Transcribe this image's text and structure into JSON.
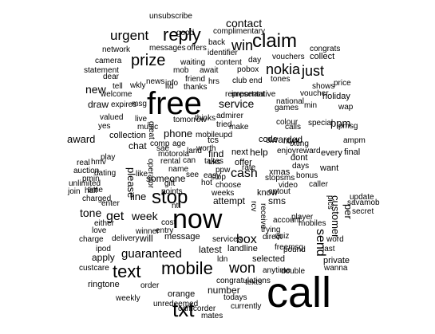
{
  "words": [
    "call",
    "free",
    "now",
    "txt",
    "text",
    "mobile",
    "stop",
    "claim",
    "reply",
    "prize",
    "won",
    "box",
    "send",
    "get",
    "win",
    "nokia",
    "just",
    "urgent",
    "contact",
    "service",
    "cash",
    "tone",
    "week",
    "guaranteed",
    "new",
    "customer",
    "per",
    "ppm",
    "awarded",
    "latest",
    "phone",
    "will",
    "line",
    "please",
    "chat",
    "draw",
    "apply",
    "holiday",
    "collect",
    "code",
    "know",
    "message",
    "collection",
    "ringtone",
    "landline",
    "selected",
    "number",
    "orange",
    "unsubscribe",
    "good",
    "complimentary",
    "network",
    "camera",
    "statement",
    "mob",
    "await",
    "waiting",
    "content",
    "identifier",
    "offers",
    "messages",
    "back",
    "pobox",
    "club",
    "end",
    "tones",
    "vouchers",
    "day",
    "congrats",
    "dear",
    "info",
    "news",
    "wkly",
    "tell",
    "welcome",
    "hrs",
    "friend",
    "ltd",
    "thanks",
    "important",
    "representative",
    "voucher",
    "national",
    "games",
    "min",
    "shows",
    "price",
    "valued",
    "expires",
    "msg",
    "live",
    "tomorrow",
    "thinks",
    "tried",
    "make",
    "admirer",
    "special",
    "colour",
    "calls",
    "wap",
    "pmsg",
    "ampm",
    "final",
    "every",
    "want",
    "dont",
    "bonus",
    "days",
    "enjoy",
    "reward",
    "xmas",
    "sms",
    "video",
    "caller",
    "pics",
    "update",
    "secret",
    "savamob",
    "optout",
    "account",
    "trying",
    "player",
    "mobiles",
    "freemsg",
    "pound",
    "wanna",
    "double",
    "anytime",
    "todays",
    "mates",
    "camcorder",
    "currently",
    "weekly",
    "unredeemed",
    "order",
    "congratulations",
    "texts",
    "ldn",
    "services",
    "direct",
    "quiz",
    "last",
    "private",
    "word",
    "ipod",
    "custcare",
    "charge",
    "delivery",
    "entry",
    "winner",
    "love",
    "either",
    "enter",
    "charged",
    "half",
    "join",
    "unlimited",
    "time",
    "pmin",
    "auction",
    "dating",
    "real",
    "hmv",
    "play",
    "award",
    "yes",
    "music",
    "can",
    "motorola",
    "sae",
    "comp",
    "age",
    "land",
    "takes",
    "worth",
    "mobileupd",
    "find",
    "tcs",
    "next",
    "help",
    "offer",
    "rate",
    "uks",
    "rental",
    "name",
    "someone",
    "see",
    "easy",
    "gift",
    "points",
    "choose",
    "weeks",
    "ntt",
    "cost",
    "attempt",
    "rcv",
    "receive",
    "stop",
    "ppw",
    "txting",
    "hot",
    "like",
    "operator",
    "great",
    "ntwk",
    "stopsms"
  ]
}
